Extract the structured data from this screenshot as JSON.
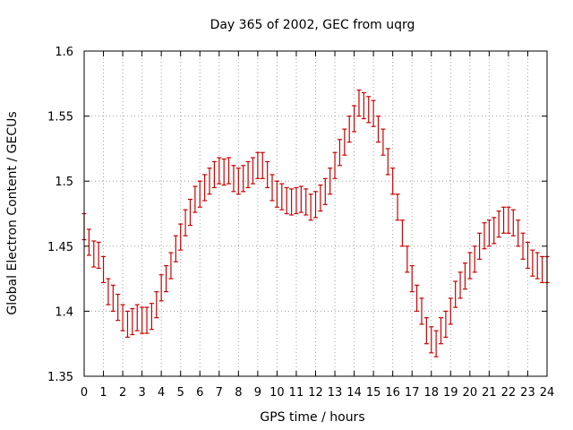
{
  "chart_data": {
    "type": "scatter",
    "title": "Day 365 of 2002, GEC from uqrg",
    "xlabel": "GPS time / hours",
    "ylabel": "Global Electron Content / GECUs",
    "xlim": [
      0,
      24
    ],
    "ylim": [
      1.35,
      1.6
    ],
    "x_ticks": [
      0,
      1,
      2,
      3,
      4,
      5,
      6,
      7,
      8,
      9,
      10,
      11,
      12,
      13,
      14,
      15,
      16,
      17,
      18,
      19,
      20,
      21,
      22,
      23,
      24
    ],
    "y_ticks": [
      1.35,
      1.4,
      1.45,
      1.5,
      1.55,
      1.6
    ],
    "x_tick_labels": [
      "0",
      "1",
      "2",
      "3",
      "4",
      "5",
      "6",
      "7",
      "8",
      "9",
      "10",
      "11",
      "12",
      "13",
      "14",
      "15",
      "16",
      "17",
      "18",
      "19",
      "20",
      "21",
      "22",
      "23",
      "24"
    ],
    "y_tick_labels": [
      "1.35",
      "1.4",
      "1.45",
      "1.5",
      "1.55",
      "1.6"
    ],
    "grid": true,
    "error_bar": 0.01,
    "series": [
      {
        "color": "#cc0000",
        "x": [
          0,
          0.25,
          0.5,
          0.75,
          1,
          1.25,
          1.5,
          1.75,
          2,
          2.25,
          2.5,
          2.75,
          3,
          3.25,
          3.5,
          3.75,
          4,
          4.25,
          4.5,
          4.75,
          5,
          5.25,
          5.5,
          5.75,
          6,
          6.25,
          6.5,
          6.75,
          7,
          7.25,
          7.5,
          7.75,
          8,
          8.25,
          8.5,
          8.75,
          9,
          9.25,
          9.5,
          9.75,
          10,
          10.25,
          10.5,
          10.75,
          11,
          11.25,
          11.5,
          11.75,
          12,
          12.25,
          12.5,
          12.75,
          13,
          13.25,
          13.5,
          13.75,
          14,
          14.25,
          14.5,
          14.75,
          15,
          15.25,
          15.5,
          15.75,
          16,
          16.25,
          16.5,
          16.75,
          17,
          17.25,
          17.5,
          17.75,
          18,
          18.25,
          18.5,
          18.75,
          19,
          19.25,
          19.5,
          19.75,
          20,
          20.25,
          20.5,
          20.75,
          21,
          21.25,
          21.5,
          21.75,
          22,
          22.25,
          22.5,
          22.75,
          23,
          23.25,
          23.5,
          23.75,
          24
        ],
        "y": [
          1.465,
          1.453,
          1.444,
          1.443,
          1.432,
          1.415,
          1.41,
          1.403,
          1.395,
          1.39,
          1.392,
          1.395,
          1.393,
          1.393,
          1.396,
          1.405,
          1.418,
          1.425,
          1.435,
          1.448,
          1.457,
          1.468,
          1.476,
          1.486,
          1.49,
          1.495,
          1.5,
          1.505,
          1.508,
          1.507,
          1.508,
          1.502,
          1.5,
          1.502,
          1.505,
          1.508,
          1.512,
          1.512,
          1.505,
          1.495,
          1.49,
          1.488,
          1.485,
          1.484,
          1.485,
          1.486,
          1.484,
          1.48,
          1.482,
          1.487,
          1.492,
          1.5,
          1.512,
          1.522,
          1.53,
          1.54,
          1.548,
          1.56,
          1.558,
          1.555,
          1.552,
          1.54,
          1.53,
          1.515,
          1.5,
          1.48,
          1.46,
          1.44,
          1.425,
          1.41,
          1.4,
          1.385,
          1.378,
          1.375,
          1.385,
          1.39,
          1.4,
          1.413,
          1.42,
          1.427,
          1.435,
          1.44,
          1.45,
          1.458,
          1.46,
          1.462,
          1.467,
          1.47,
          1.47,
          1.468,
          1.46,
          1.45,
          1.443,
          1.437,
          1.435,
          1.432,
          1.432
        ]
      }
    ]
  }
}
